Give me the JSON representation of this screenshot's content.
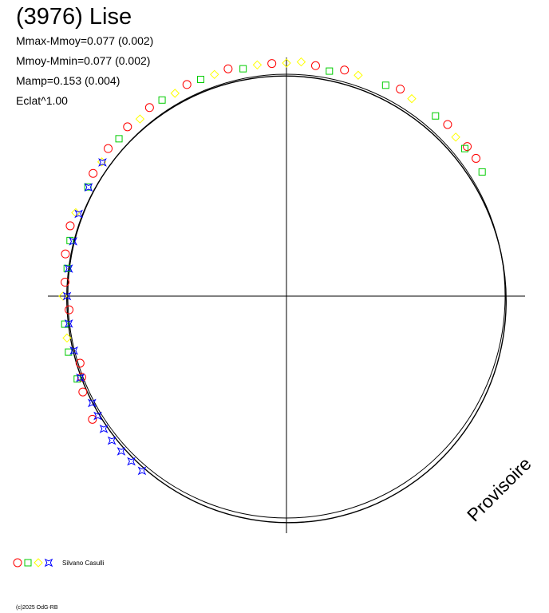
{
  "title": "(3976) Lise",
  "stats": [
    "Mmax-Mmoy=0.077 (0.002)",
    "Mmoy-Mmin=0.077 (0.002)",
    "Mamp=0.153 (0.004)",
    "Eclat^1.00"
  ],
  "legend": {
    "observer": "Silvano Casulli",
    "colors": [
      "#ff0000",
      "#00cc00",
      "#ffff00",
      "#0000ff"
    ]
  },
  "copyright": "(c)2025 OdG-RB",
  "stamp": "Provisoire",
  "chart_data": {
    "type": "polar-lightcurve",
    "series": [
      {
        "marker": "circle",
        "color": "#ff0000",
        "points": [
          {
            "phase": 0.02,
            "mag": 0.085
          },
          {
            "phase": 0.04,
            "mag": 0.092
          },
          {
            "phase": 0.08,
            "mag": 0.11
          },
          {
            "phase": 0.12,
            "mag": 0.105
          },
          {
            "phase": 0.14,
            "mag": 0.1
          },
          {
            "phase": 0.15,
            "mag": 0.098
          },
          {
            "phase": 0.66,
            "mag": 0.07
          },
          {
            "phase": 0.68,
            "mag": 0.04
          },
          {
            "phase": 0.69,
            "mag": 0.01
          },
          {
            "phase": 0.7,
            "mag": -0.01
          },
          {
            "phase": 0.74,
            "mag": -0.005
          },
          {
            "phase": 0.76,
            "mag": 0.02
          },
          {
            "phase": 0.78,
            "mag": 0.04
          },
          {
            "phase": 0.8,
            "mag": 0.055
          },
          {
            "phase": 0.84,
            "mag": 0.065
          },
          {
            "phase": 0.86,
            "mag": 0.08
          },
          {
            "phase": 0.88,
            "mag": 0.085
          },
          {
            "phase": 0.9,
            "mag": 0.09
          },
          {
            "phase": 0.93,
            "mag": 0.095
          },
          {
            "phase": 0.96,
            "mag": 0.1
          },
          {
            "phase": 0.99,
            "mag": 0.09
          }
        ]
      },
      {
        "marker": "square",
        "color": "#00cc00",
        "points": [
          {
            "phase": 0.03,
            "mag": 0.065
          },
          {
            "phase": 0.07,
            "mag": 0.09
          },
          {
            "phase": 0.11,
            "mag": 0.095
          },
          {
            "phase": 0.14,
            "mag": 0.08
          },
          {
            "phase": 0.16,
            "mag": 0.082
          },
          {
            "phase": 0.69,
            "mag": 0.04
          },
          {
            "phase": 0.71,
            "mag": 0.04
          },
          {
            "phase": 0.73,
            "mag": 0.03
          },
          {
            "phase": 0.77,
            "mag": 0.015
          },
          {
            "phase": 0.79,
            "mag": 0.03
          },
          {
            "phase": 0.83,
            "mag": 0.05
          },
          {
            "phase": 0.87,
            "mag": 0.07
          },
          {
            "phase": 0.91,
            "mag": 0.085
          },
          {
            "phase": 0.94,
            "mag": 0.09
          },
          {
            "phase": 0.97,
            "mag": 0.08
          }
        ]
      },
      {
        "marker": "diamond",
        "color": "#ffff00",
        "points": [
          {
            "phase": 0.0,
            "mag": 0.09
          },
          {
            "phase": 0.01,
            "mag": 0.1
          },
          {
            "phase": 0.05,
            "mag": 0.085
          },
          {
            "phase": 0.09,
            "mag": 0.095
          },
          {
            "phase": 0.13,
            "mag": 0.085
          },
          {
            "phase": 0.72,
            "mag": 0.03
          },
          {
            "phase": 0.75,
            "mag": 0.03
          },
          {
            "phase": 0.81,
            "mag": 0.05
          },
          {
            "phase": 0.85,
            "mag": 0.06
          },
          {
            "phase": 0.89,
            "mag": 0.07
          },
          {
            "phase": 0.92,
            "mag": 0.08
          },
          {
            "phase": 0.95,
            "mag": 0.09
          },
          {
            "phase": 0.98,
            "mag": 0.09
          }
        ]
      },
      {
        "marker": "star",
        "color": "#0000ff",
        "points": [
          {
            "phase": 0.61,
            "mag": 0.05
          },
          {
            "phase": 0.62,
            "mag": 0.05
          },
          {
            "phase": 0.63,
            "mag": 0.05
          },
          {
            "phase": 0.64,
            "mag": 0.05
          },
          {
            "phase": 0.65,
            "mag": 0.045
          },
          {
            "phase": 0.66,
            "mag": 0.03
          },
          {
            "phase": 0.67,
            "mag": 0.02
          },
          {
            "phase": 0.69,
            "mag": 0.02
          },
          {
            "phase": 0.71,
            "mag": 0.005
          },
          {
            "phase": 0.73,
            "mag": 0.005
          },
          {
            "phase": 0.75,
            "mag": 0.005
          },
          {
            "phase": 0.77,
            "mag": 0.005
          },
          {
            "phase": 0.79,
            "mag": 0.01
          },
          {
            "phase": 0.81,
            "mag": 0.03
          },
          {
            "phase": 0.83,
            "mag": 0.045
          },
          {
            "phase": 0.85,
            "mag": 0.055
          }
        ]
      }
    ]
  }
}
